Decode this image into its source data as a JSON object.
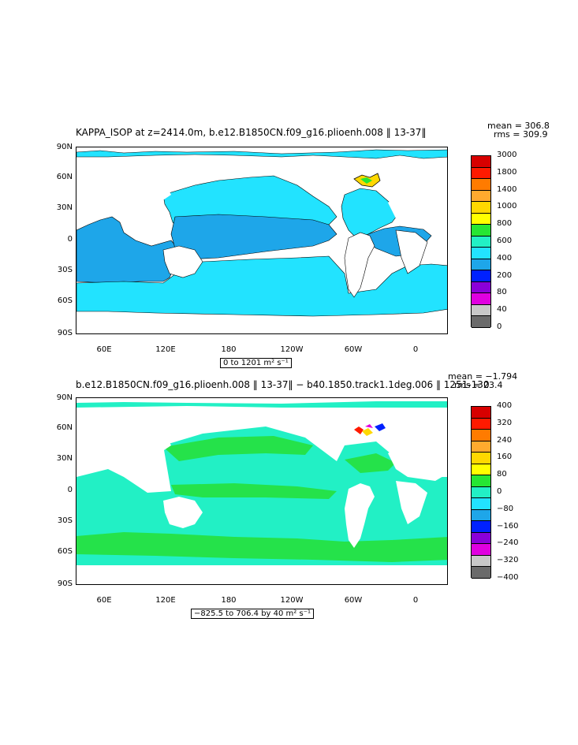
{
  "colors": {
    "light_cyan": "#22e3ff",
    "mid_blue": "#1ea6e9",
    "green": "#25e24a",
    "teal": "#22f0c5",
    "white": "#ffffff"
  },
  "panel1": {
    "title": "KAPPA_ISOP at z=2414.0m, b.e12.B1850CN.f09_g16.plioenh.008 ‖ 13-37‖",
    "stat_mean": "mean = 306.8",
    "stat_rms": "rms = 309.9",
    "range": "0 to 1201 m² s⁻¹",
    "lat_labels": [
      "90N",
      "60N",
      "30N",
      "0",
      "30S",
      "60S",
      "90S"
    ],
    "lon_labels": [
      "60E",
      "120E",
      "180",
      "120W",
      "60W",
      "0"
    ],
    "colorbar_labels": [
      "3000",
      "1800",
      "1400",
      "1000",
      "800",
      "600",
      "400",
      "200",
      "80",
      "40",
      "0"
    ],
    "colorbar_colors": [
      "#d70000",
      "#ff1a00",
      "#ff7b00",
      "#ffaa2e",
      "#ffd800",
      "#ffff00",
      "#26e633",
      "#22f0c5",
      "#22e3ff",
      "#1ea6e9",
      "#0021ff",
      "#8b00d9",
      "#e000e0",
      "#c8c8c8",
      "#6b6b6b"
    ]
  },
  "panel2": {
    "title": "b.e12.B1850CN.f09_g16.plioenh.008 ‖ 13-37‖ − b40.1850.track1.1deg.006 ‖ 1251-130",
    "stat_mean": "mean = −1.794",
    "stat_rms": "rms = 23.4",
    "range": "−825.5 to 706.4 by 40 m² s⁻¹",
    "lat_labels": [
      "90N",
      "60N",
      "30N",
      "0",
      "30S",
      "60S",
      "90S"
    ],
    "lon_labels": [
      "60E",
      "120E",
      "180",
      "120W",
      "60W",
      "0"
    ],
    "colorbar_labels": [
      "400",
      "320",
      "240",
      "160",
      "80",
      "0",
      "−80",
      "−160",
      "−240",
      "−320",
      "−400"
    ],
    "colorbar_colors": [
      "#d70000",
      "#ff1a00",
      "#ff7b00",
      "#ffaa2e",
      "#ffd800",
      "#ffff00",
      "#26e633",
      "#22f0c5",
      "#22e3ff",
      "#1ea6e9",
      "#0021ff",
      "#8b00d9",
      "#e000e0",
      "#c8c8c8",
      "#6b6b6b"
    ]
  }
}
